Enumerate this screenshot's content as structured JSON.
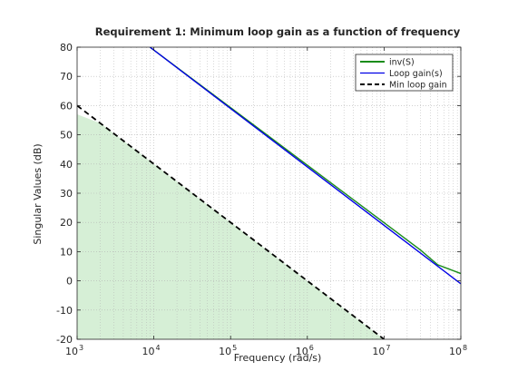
{
  "chart_data": {
    "type": "line",
    "title": "Requirement 1: Minimum loop gain as a function of frequency",
    "xlabel": "Frequency (rad/s)",
    "ylabel": "Singular Values (dB)",
    "xscale": "log",
    "xlim": [
      1000,
      100000000
    ],
    "ylim": [
      -20,
      80
    ],
    "x_ticks": [
      {
        "value": 1000,
        "base": "10",
        "exp": "3"
      },
      {
        "value": 10000,
        "base": "10",
        "exp": "4"
      },
      {
        "value": 100000,
        "base": "10",
        "exp": "5"
      },
      {
        "value": 1000000,
        "base": "10",
        "exp": "6"
      },
      {
        "value": 10000000,
        "base": "10",
        "exp": "7"
      },
      {
        "value": 100000000,
        "base": "10",
        "exp": "8"
      }
    ],
    "y_ticks": [
      -20,
      -10,
      0,
      10,
      20,
      30,
      40,
      50,
      60,
      70,
      80
    ],
    "y_tick_labels": [
      "-20",
      "-10",
      "0",
      "10",
      "20",
      "30",
      "40",
      "50",
      "60",
      "70",
      "80"
    ],
    "grid": "minor-dotted",
    "legend_position": "top-right",
    "shaded_region": {
      "color": "#d6efd6",
      "x": [
        1000,
        2000,
        10000000,
        100000000
      ],
      "y": [
        57,
        54,
        -20,
        -20
      ]
    },
    "series": [
      {
        "name": "inv(S)",
        "color": "#1a8c1a",
        "style": "solid",
        "x": [
          8900,
          30000000,
          50000000,
          100000000
        ],
        "y": [
          80,
          10.5,
          5.5,
          2.5
        ]
      },
      {
        "name": "Loop gain(s)",
        "color": "#0000e6",
        "style": "solid",
        "x": [
          8900,
          100000000
        ],
        "y": [
          80,
          -1
        ]
      },
      {
        "name": "Min loop gain",
        "color": "#000000",
        "style": "dashed",
        "x": [
          1000,
          10000000
        ],
        "y": [
          60,
          -20
        ]
      }
    ]
  }
}
